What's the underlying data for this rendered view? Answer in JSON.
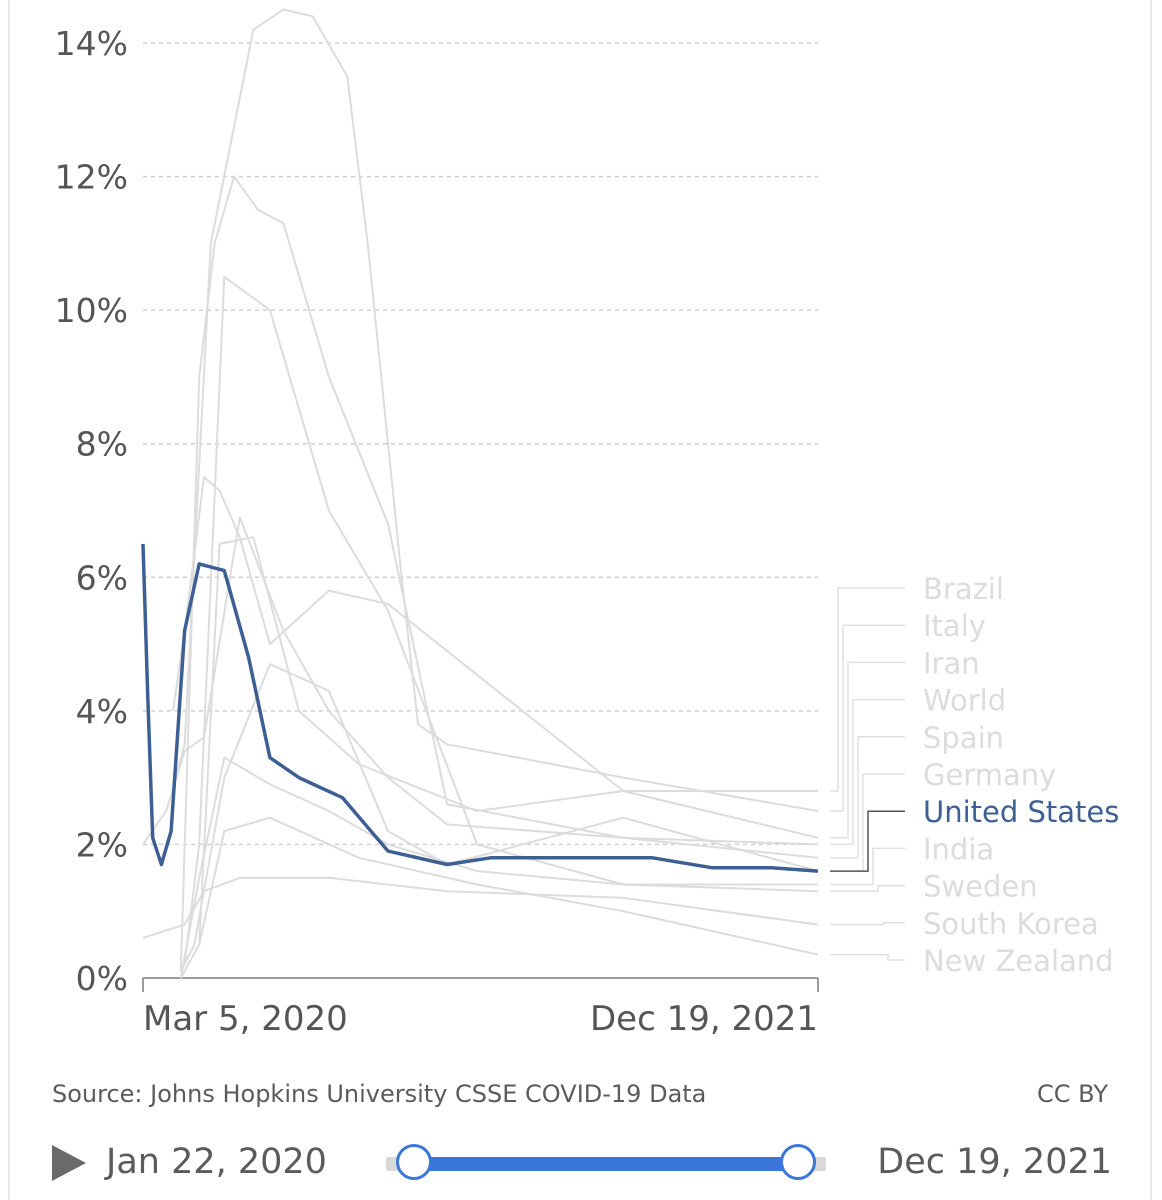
{
  "chart_data": {
    "type": "line",
    "title": "",
    "xlabel": "",
    "ylabel": "",
    "x_range": [
      "2020-01-22",
      "2021-12-19"
    ],
    "x_tick_labels": [
      "Mar 5, 2020",
      "Dec 19, 2021"
    ],
    "y_tick_labels": [
      "0%",
      "2%",
      "4%",
      "6%",
      "8%",
      "10%",
      "12%",
      "14%"
    ],
    "ylim": [
      0,
      14
    ],
    "unit": "%",
    "grid": "horizontal dashed",
    "legend": "right-side labels at line ends",
    "highlight_color": "#3d5f93",
    "muted_color": "#dcdcdc",
    "series": [
      {
        "name": "Brazil",
        "highlighted": false,
        "x": [
          "2020-03-20",
          "2020-04-10",
          "2020-05-15",
          "2020-07-01",
          "2020-09-01",
          "2021-01-01",
          "2021-06-01",
          "2021-12-19"
        ],
        "values": [
          0.5,
          6.5,
          6.6,
          4.0,
          3.2,
          2.5,
          2.8,
          2.8
        ]
      },
      {
        "name": "Italy",
        "highlighted": false,
        "x": [
          "2020-02-25",
          "2020-03-05",
          "2020-04-01",
          "2020-05-15",
          "2020-06-15",
          "2020-07-15",
          "2020-08-20",
          "2020-09-10",
          "2020-10-15",
          "2020-11-01",
          "2020-12-01",
          "2021-06-01",
          "2021-12-19"
        ],
        "values": [
          3.0,
          3.5,
          11.0,
          14.2,
          14.5,
          14.4,
          13.5,
          11.0,
          6.0,
          3.8,
          3.5,
          3.0,
          2.5
        ]
      },
      {
        "name": "Iran",
        "highlighted": false,
        "x": [
          "2020-02-22",
          "2020-03-05",
          "2020-03-25",
          "2020-04-10",
          "2020-05-01",
          "2020-06-01",
          "2020-08-01",
          "2020-10-01",
          "2021-06-01",
          "2021-12-19"
        ],
        "values": [
          4.0,
          5.2,
          7.5,
          7.3,
          6.6,
          5.0,
          5.8,
          5.6,
          2.8,
          2.1
        ]
      },
      {
        "name": "World",
        "highlighted": false,
        "x": [
          "2020-01-22",
          "2020-02-15",
          "2020-03-05",
          "2020-03-25",
          "2020-05-01",
          "2020-06-15",
          "2020-08-01",
          "2020-10-01",
          "2020-12-01",
          "2021-06-01",
          "2021-12-19"
        ],
        "values": [
          2.0,
          2.5,
          3.4,
          3.6,
          6.9,
          5.2,
          4.0,
          3.0,
          2.3,
          2.1,
          2.0
        ]
      },
      {
        "name": "Spain",
        "highlighted": false,
        "x": [
          "2020-03-01",
          "2020-03-20",
          "2020-04-05",
          "2020-04-25",
          "2020-05-20",
          "2020-06-15",
          "2020-08-01",
          "2020-10-01",
          "2020-12-01",
          "2021-06-01",
          "2021-12-19"
        ],
        "values": [
          0.1,
          9.0,
          11.0,
          12.0,
          11.5,
          11.3,
          9.0,
          6.8,
          2.6,
          2.1,
          1.8
        ]
      },
      {
        "name": "Germany",
        "highlighted": false,
        "x": [
          "2020-03-01",
          "2020-03-15",
          "2020-04-15",
          "2020-06-01",
          "2020-08-01",
          "2020-10-01",
          "2020-12-01",
          "2021-06-01",
          "2021-12-19"
        ],
        "values": [
          0.1,
          0.5,
          3.0,
          4.7,
          4.3,
          2.2,
          1.7,
          2.4,
          1.6
        ]
      },
      {
        "name": "United States",
        "highlighted": true,
        "x": [
          "2020-01-22",
          "2020-01-27",
          "2020-02-01",
          "2020-02-10",
          "2020-02-20",
          "2020-03-05",
          "2020-03-20",
          "2020-04-15",
          "2020-05-10",
          "2020-06-01",
          "2020-07-01",
          "2020-08-15",
          "2020-10-01",
          "2020-12-01",
          "2021-01-15",
          "2021-03-01",
          "2021-05-01",
          "2021-07-01",
          "2021-09-01",
          "2021-11-01",
          "2021-12-19"
        ],
        "values": [
          6.5,
          4.2,
          2.1,
          1.7,
          2.2,
          5.2,
          6.2,
          6.1,
          4.8,
          3.3,
          3.0,
          2.7,
          1.9,
          1.7,
          1.8,
          1.8,
          1.8,
          1.8,
          1.65,
          1.65,
          1.6
        ]
      },
      {
        "name": "India",
        "highlighted": false,
        "x": [
          "2020-03-01",
          "2020-03-20",
          "2020-04-15",
          "2020-06-01",
          "2020-08-01",
          "2020-10-01",
          "2021-01-01",
          "2021-06-01",
          "2021-12-19"
        ],
        "values": [
          0.0,
          1.5,
          3.3,
          2.9,
          2.5,
          2.0,
          1.6,
          1.4,
          1.4
        ]
      },
      {
        "name": "Sweden",
        "highlighted": false,
        "x": [
          "2020-03-05",
          "2020-03-20",
          "2020-04-15",
          "2020-06-01",
          "2020-08-01",
          "2020-10-01",
          "2021-01-01",
          "2021-06-01",
          "2021-12-19"
        ],
        "values": [
          0.2,
          2.0,
          10.5,
          10.0,
          7.0,
          5.5,
          2.0,
          1.4,
          1.3
        ]
      },
      {
        "name": "South Korea",
        "highlighted": false,
        "x": [
          "2020-01-22",
          "2020-03-05",
          "2020-03-25",
          "2020-05-01",
          "2020-08-01",
          "2020-12-01",
          "2021-06-01",
          "2021-12-19"
        ],
        "values": [
          0.6,
          0.8,
          1.3,
          1.5,
          1.5,
          1.3,
          1.2,
          0.8
        ]
      },
      {
        "name": "New Zealand",
        "highlighted": false,
        "x": [
          "2020-03-01",
          "2020-03-20",
          "2020-04-15",
          "2020-06-01",
          "2020-09-01",
          "2021-01-01",
          "2021-06-01",
          "2021-12-19"
        ],
        "values": [
          0.0,
          0.5,
          2.2,
          2.4,
          1.8,
          1.4,
          1.0,
          0.35
        ]
      }
    ]
  },
  "footer": {
    "source": "Source: Johns Hopkins University CSSE COVID-19 Data",
    "license": "CC BY"
  },
  "timeline": {
    "start_label": "Jan 22, 2020",
    "end_label": "Dec 19, 2021",
    "play_icon": "play-icon",
    "range_fraction": [
      0.0,
      1.0
    ]
  }
}
